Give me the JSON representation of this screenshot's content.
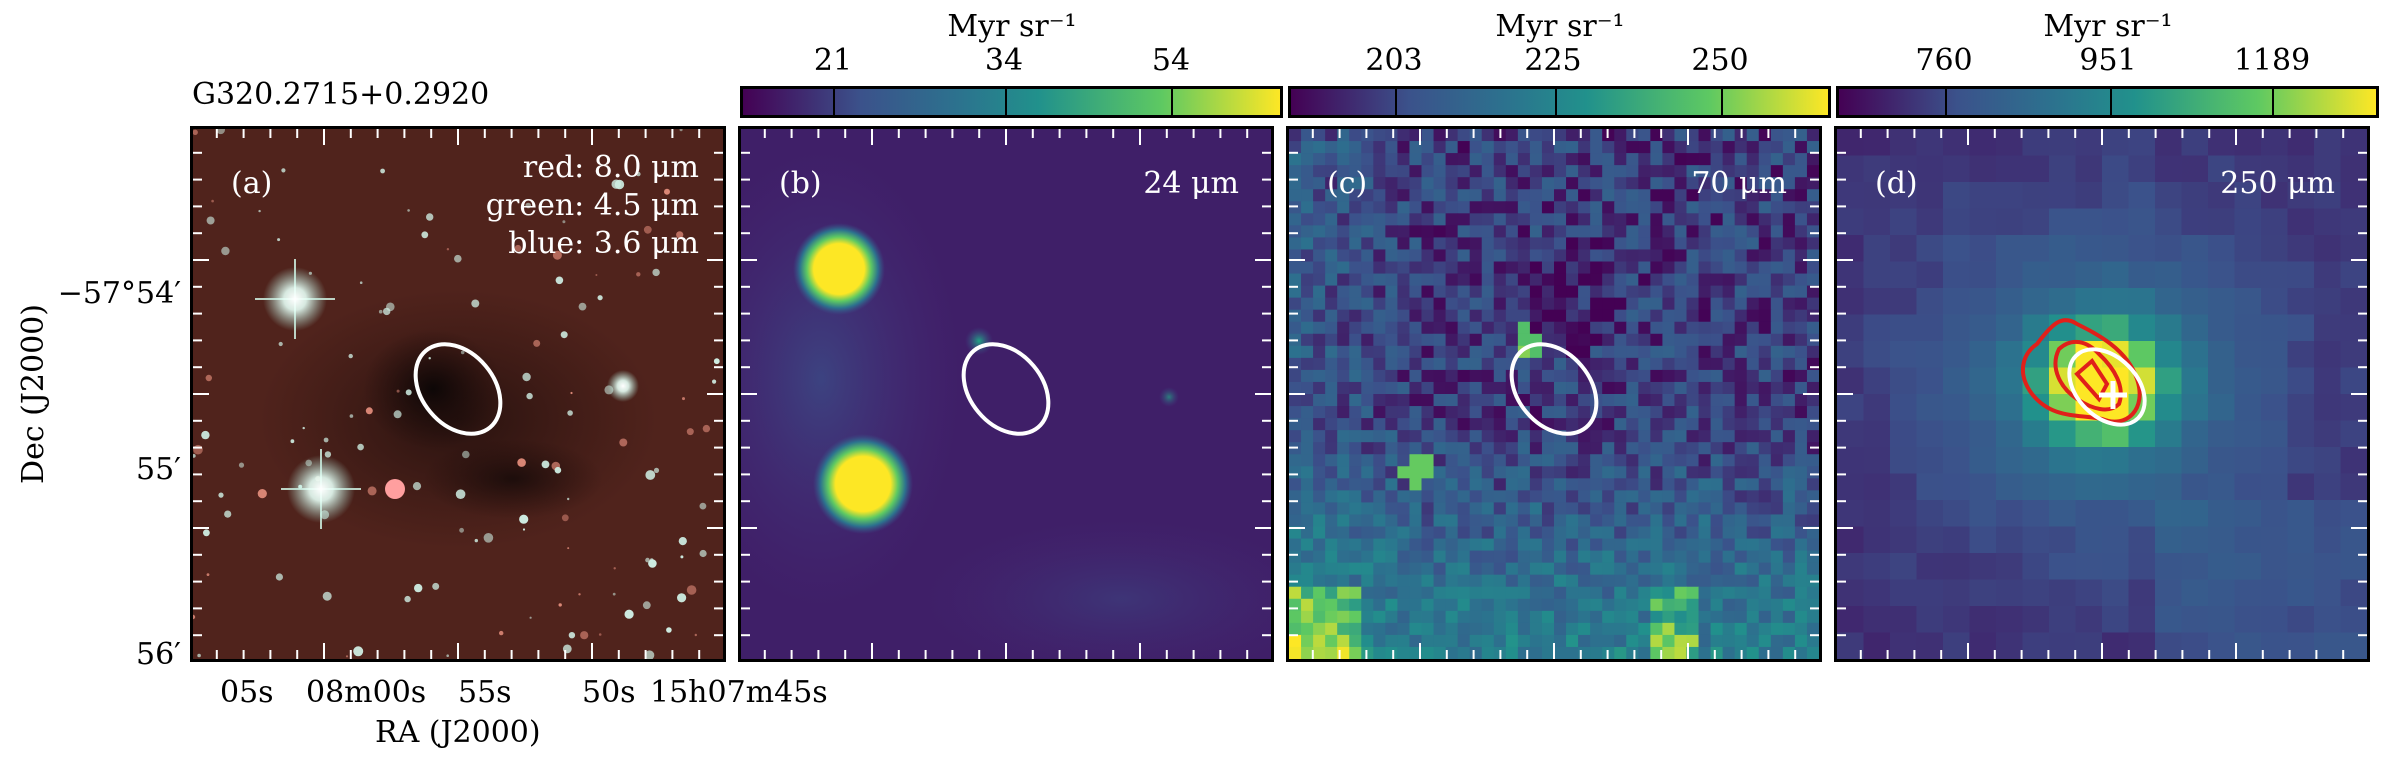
{
  "source_name": "G320.2715+0.2920",
  "axes": {
    "ylabel": "Dec (J2000)",
    "xlabel": "RA (J2000)",
    "dec_ticks": [
      "−57°54′",
      "55′",
      "56′"
    ],
    "ra_ticks": [
      "05s",
      "08m00s",
      "55s",
      "50s",
      "15h07m45s"
    ]
  },
  "panels": [
    {
      "id": "a",
      "label": "(a)",
      "legend": [
        "red: 8.0 μm",
        "green: 4.5 μm",
        "blue: 3.6 μm"
      ]
    },
    {
      "id": "b",
      "label": "(b)",
      "band": "24 μm"
    },
    {
      "id": "c",
      "label": "(c)",
      "band": "70 μm"
    },
    {
      "id": "d",
      "label": "(d)",
      "band": "250 μm"
    }
  ],
  "colorbars": [
    {
      "title": "Myr sr⁻¹",
      "ticks": [
        "21",
        "34",
        "54"
      ]
    },
    {
      "title": "Myr sr⁻¹",
      "ticks": [
        "203",
        "225",
        "250"
      ]
    },
    {
      "title": "Myr sr⁻¹",
      "ticks": [
        "760",
        "951",
        "1189"
      ]
    }
  ],
  "colors": {
    "viridis_dark": "#440154",
    "viridis_mid": "#21918c",
    "viridis_light": "#fde725",
    "ellipse": "#ffffff",
    "contour": "#e0201a"
  }
}
